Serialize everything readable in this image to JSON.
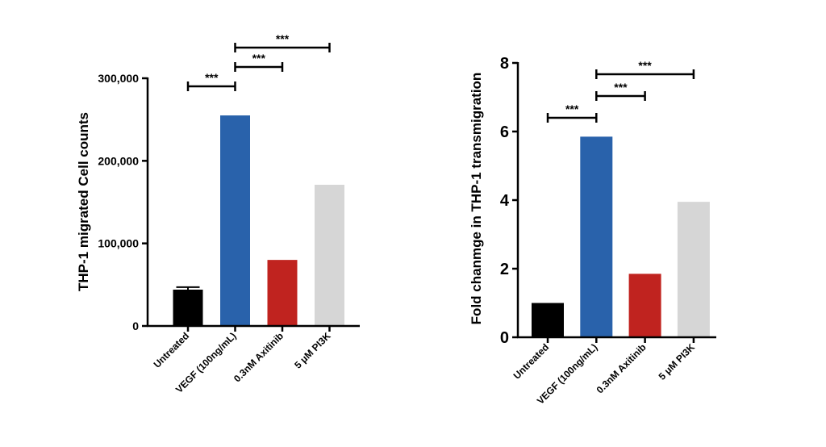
{
  "chart_data": [
    {
      "type": "bar",
      "categories": [
        "Untreated",
        "VEGF (100ng/mL)",
        "0.3nM Axitinib",
        "5 μM PI3K"
      ],
      "values": [
        44000,
        255000,
        80000,
        171000
      ],
      "errors": [
        3000,
        0,
        0,
        0
      ],
      "colors": [
        "#000000",
        "#2962ab",
        "#c0231f",
        "#d6d6d6"
      ],
      "ylabel": "THP-1 migrated Cell counts",
      "ylim": [
        0,
        300000
      ],
      "yticks": [
        0,
        100000,
        200000,
        300000
      ],
      "ytick_labels": [
        "0",
        "100,000",
        "200,000",
        "300,000"
      ],
      "significance": [
        {
          "from": 0,
          "to": 1,
          "label": "***",
          "level": 1
        },
        {
          "from": 1,
          "to": 2,
          "label": "***",
          "level": 2
        },
        {
          "from": 1,
          "to": 3,
          "label": "***",
          "level": 3
        }
      ]
    },
    {
      "type": "bar",
      "categories": [
        "Untreated",
        "VEGF (100ng/mL)",
        "0.3nM Axitinib",
        "5 μM PI3K"
      ],
      "values": [
        1.0,
        5.85,
        1.85,
        3.95
      ],
      "errors": [
        0,
        0,
        0,
        0
      ],
      "colors": [
        "#000000",
        "#2962ab",
        "#c0231f",
        "#d6d6d6"
      ],
      "ylabel": "Fold chanmge in THP-1 transmigration",
      "ylim": [
        0,
        8
      ],
      "yticks": [
        0,
        2,
        4,
        6,
        8
      ],
      "ytick_labels": [
        "0",
        "2",
        "4",
        "6",
        "8"
      ],
      "significance": [
        {
          "from": 0,
          "to": 1,
          "label": "***",
          "level": 1
        },
        {
          "from": 1,
          "to": 2,
          "label": "***",
          "level": 2
        },
        {
          "from": 1,
          "to": 3,
          "label": "***",
          "level": 3
        }
      ]
    }
  ]
}
